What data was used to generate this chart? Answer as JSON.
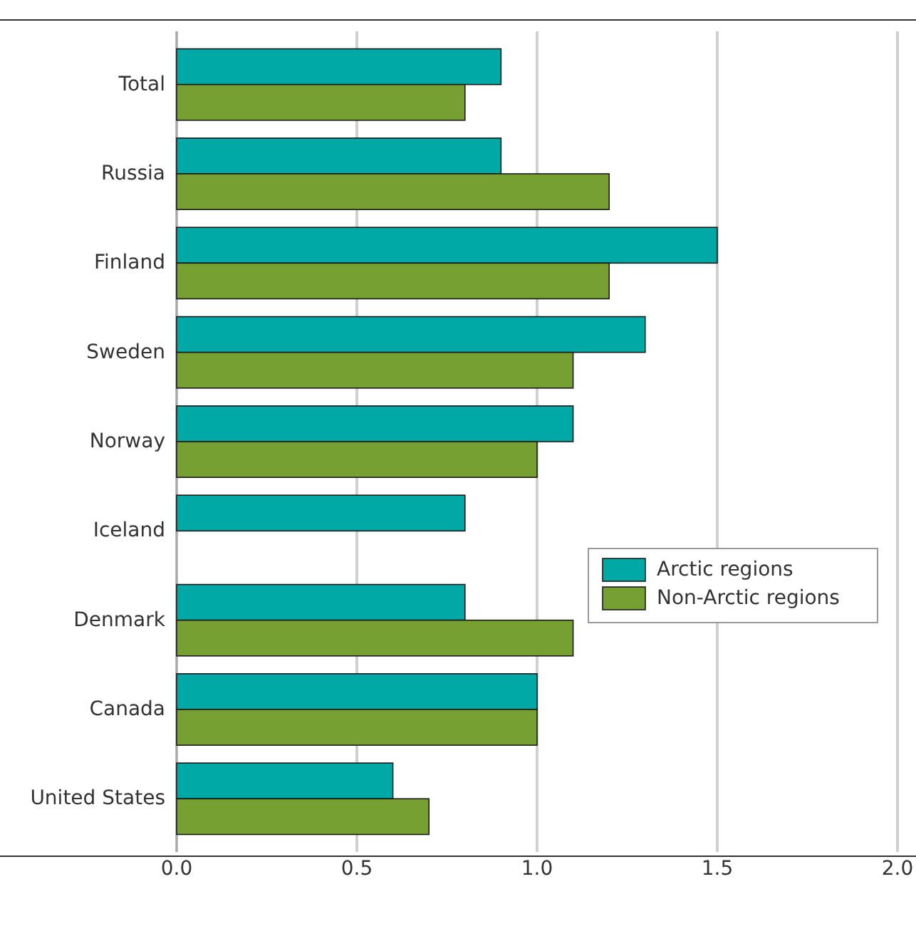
{
  "chart_data": {
    "type": "bar",
    "orientation": "horizontal",
    "categories": [
      "Total",
      "Russia",
      "Finland",
      "Sweden",
      "Norway",
      "Iceland",
      "Denmark",
      "Canada",
      "United States"
    ],
    "series": [
      {
        "name": "Arctic regions",
        "color": "#00a9a5",
        "values": [
          0.9,
          0.9,
          1.5,
          1.3,
          1.1,
          0.8,
          0.8,
          1.0,
          0.6
        ]
      },
      {
        "name": "Non-Arctic regions",
        "color": "#76a032",
        "values": [
          0.8,
          1.2,
          1.2,
          1.1,
          1.0,
          null,
          1.1,
          1.0,
          0.7
        ]
      }
    ],
    "xlim": [
      0,
      2
    ],
    "xticks": [
      {
        "value": 0,
        "label": "0.0"
      },
      {
        "value": 0.5,
        "label": "0.5"
      },
      {
        "value": 1,
        "label": "1.0"
      },
      {
        "value": 1.5,
        "label": "1.5"
      },
      {
        "value": 2,
        "label": "2.0"
      }
    ],
    "grid": "x",
    "legend": "right"
  }
}
